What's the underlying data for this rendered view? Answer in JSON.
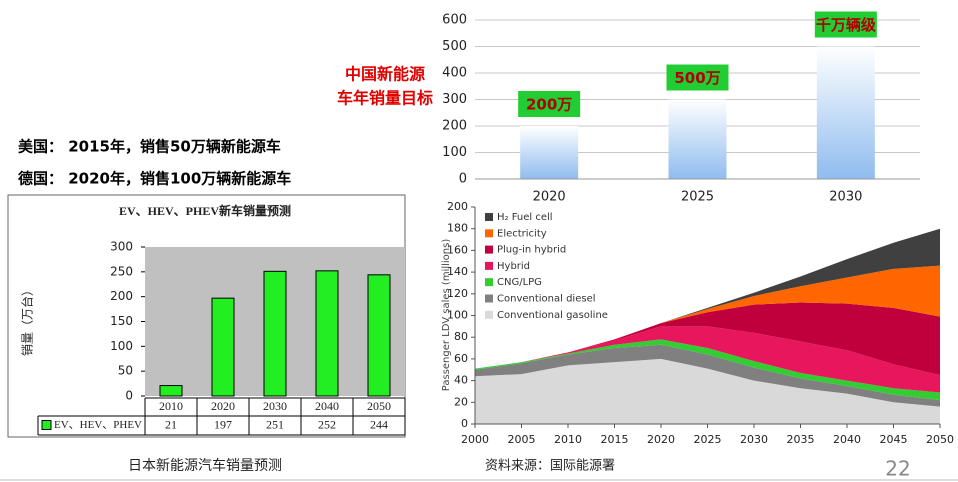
{
  "notes": {
    "usa": "美国：  2015年，销售50万辆新能源车",
    "germany": "德国：  2020年，销售100万辆新能源车",
    "japan_caption": "日本新能源汽车销量预测",
    "source": "资料来源：国际能源署",
    "page_number": "22"
  },
  "chart_data": [
    {
      "type": "bar",
      "title": [
        "中国新能源",
        "车年销量目标"
      ],
      "categories": [
        "2020",
        "2025",
        "2030"
      ],
      "values": [
        200,
        300,
        500
      ],
      "color": "#8fbcef",
      "annotations": [
        "200万",
        "500万",
        "千万辆级"
      ],
      "ylim": [
        0,
        600
      ],
      "yticks": [
        0,
        100,
        200,
        300,
        400,
        500,
        600
      ],
      "grid": true
    },
    {
      "type": "bar",
      "title": "EV、HEV、PHEV新车销量预测",
      "y_label": "销量（万台）",
      "categories": [
        "2010",
        "2020",
        "2030",
        "2040",
        "2050"
      ],
      "series": [
        {
          "name": "EV、HEV、PHEV",
          "color": "#22ee22",
          "values": [
            21,
            197,
            251,
            252,
            244
          ]
        }
      ],
      "ylim": [
        0,
        300
      ],
      "yticks": [
        0,
        50,
        100,
        150,
        200,
        250,
        300
      ],
      "grid": false
    },
    {
      "type": "stacked_area",
      "y_label": "Passenger LDV sales (millions)",
      "x": [
        2000,
        2005,
        2010,
        2015,
        2020,
        2025,
        2030,
        2035,
        2040,
        2045,
        2050
      ],
      "series": [
        {
          "name": "Conventional gasoline",
          "color": "#d9d9d9",
          "values": [
            44,
            46,
            54,
            57,
            60,
            51,
            40,
            33,
            28,
            20,
            16
          ]
        },
        {
          "name": "Conventional diesel",
          "color": "#808080",
          "values": [
            6,
            10,
            10,
            13,
            13,
            13,
            12,
            9,
            7,
            7,
            6
          ]
        },
        {
          "name": "CNG/LPG",
          "color": "#33cc33",
          "values": [
            1,
            1,
            1,
            3,
            5,
            6,
            6,
            5,
            5,
            6,
            7
          ]
        },
        {
          "name": "Hybrid",
          "color": "#e8175d",
          "values": [
            0,
            0,
            1,
            4,
            12,
            20,
            26,
            29,
            28,
            22,
            16
          ]
        },
        {
          "name": "Plug-in hybrid",
          "color": "#c0003c",
          "values": [
            0,
            0,
            0,
            1,
            3,
            13,
            26,
            36,
            43,
            52,
            54
          ]
        },
        {
          "name": "Electricity",
          "color": "#ff6600",
          "values": [
            0,
            0,
            0,
            0,
            0,
            3,
            8,
            15,
            24,
            36,
            47
          ]
        },
        {
          "name": "H₂ Fuel cell",
          "color": "#404040",
          "values": [
            0,
            0,
            0,
            0,
            0,
            1,
            3,
            9,
            17,
            24,
            34
          ]
        }
      ],
      "xlim": [
        2000,
        2050
      ],
      "xticks": [
        2000,
        2005,
        2010,
        2015,
        2020,
        2025,
        2030,
        2035,
        2040,
        2045,
        2050
      ],
      "ylim": [
        0,
        200
      ],
      "yticks": [
        0,
        20,
        40,
        60,
        80,
        100,
        120,
        140,
        160,
        180,
        200
      ]
    }
  ]
}
